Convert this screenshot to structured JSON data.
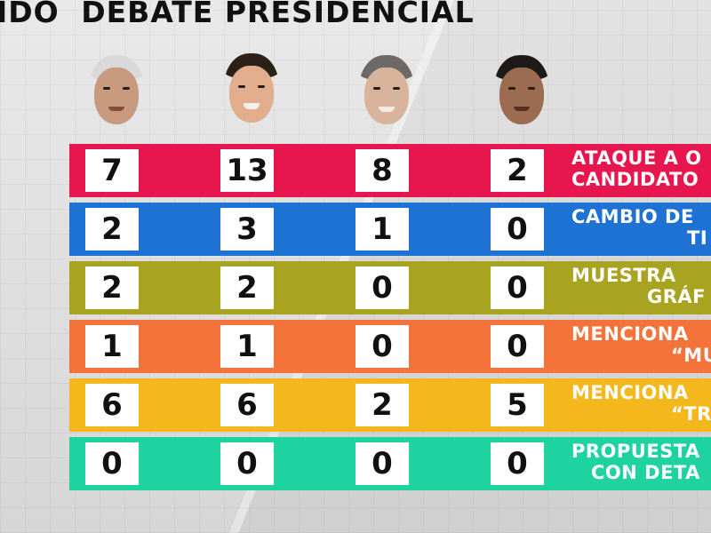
{
  "header": {
    "title_left": "IDO",
    "title_right": "DEBATE PRESIDENCIAL"
  },
  "candidates": [
    {
      "icon": "candidate-1-portrait"
    },
    {
      "icon": "candidate-2-portrait"
    },
    {
      "icon": "candidate-3-portrait"
    },
    {
      "icon": "candidate-4-portrait"
    }
  ],
  "rows": [
    {
      "color": "#e8164f",
      "values": [
        "7",
        "13",
        "8",
        "2"
      ],
      "label_line1": "ATAQUE A O",
      "label_line2": "CANDIDATO"
    },
    {
      "color": "#1d72d4",
      "values": [
        "2",
        "3",
        "1",
        "0"
      ],
      "label_line1": "CAMBIO DE",
      "label_line2": "TI"
    },
    {
      "color": "#a8a321",
      "values": [
        "2",
        "2",
        "0",
        "0"
      ],
      "label_line1": "MUESTRA",
      "label_line2": "GRÁF"
    },
    {
      "color": "#f3733a",
      "values": [
        "1",
        "1",
        "0",
        "0"
      ],
      "label_line1": "MENCIONA",
      "label_line2": "“MU"
    },
    {
      "color": "#f4b71c",
      "values": [
        "6",
        "6",
        "2",
        "5"
      ],
      "label_line1": "MENCIONA",
      "label_line2": "“TRU"
    },
    {
      "color": "#1ed3a0",
      "values": [
        "0",
        "0",
        "0",
        "0"
      ],
      "label_line1": "PROPUESTA",
      "label_line2": "CON DETA"
    }
  ]
}
